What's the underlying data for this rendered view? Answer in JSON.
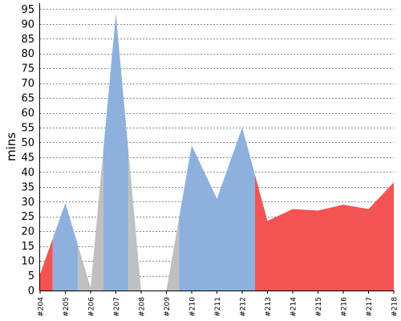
{
  "chart_data": {
    "type": "area",
    "ylabel": "mins",
    "xlabel": "",
    "ylim": [
      0,
      97
    ],
    "yticks": [
      0,
      5,
      10,
      15,
      20,
      25,
      30,
      35,
      40,
      45,
      50,
      55,
      60,
      65,
      70,
      75,
      80,
      85,
      90,
      95
    ],
    "grid": "horizontal dashed",
    "categories": [
      "#204",
      "#205",
      "#206",
      "#207",
      "#208",
      "#209",
      "#210",
      "#211",
      "#212",
      "#213",
      "#214",
      "#215",
      "#216",
      "#217",
      "#218"
    ],
    "values": [
      5.5,
      29.5,
      1.0,
      93.5,
      0,
      0,
      49.0,
      31.0,
      55.0,
      23.5,
      27.5,
      27.0,
      29.0,
      27.5,
      36.5
    ],
    "segments": [
      {
        "status": "failed",
        "color": "#f45353",
        "from": 0,
        "to": 0.5
      },
      {
        "status": "success",
        "color": "#8db0dc",
        "from": 0.5,
        "to": 1.5
      },
      {
        "status": "aborted",
        "color": "#c0c0c0",
        "from": 1.5,
        "to": 2.5
      },
      {
        "status": "success",
        "color": "#8db0dc",
        "from": 2.5,
        "to": 3.5
      },
      {
        "status": "aborted",
        "color": "#c0c0c0",
        "from": 3.5,
        "to": 5.5
      },
      {
        "status": "success",
        "color": "#8db0dc",
        "from": 5.5,
        "to": 8.5
      },
      {
        "status": "failed",
        "color": "#f45353",
        "from": 8.5,
        "to": 14
      }
    ]
  }
}
